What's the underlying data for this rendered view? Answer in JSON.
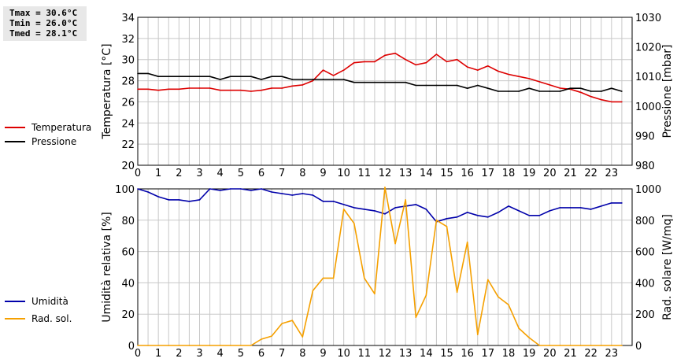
{
  "stats": {
    "tmax": "Tmax = 30.6°C",
    "tmin": "Tmin = 26.0°C",
    "tmed": "Tmed = 28.1°C"
  },
  "colors": {
    "temperature": "#dd0000",
    "pressure": "#000000",
    "humidity": "#0000aa",
    "solar": "#f5a000",
    "grid": "#c8c8c8"
  },
  "chart_data": [
    {
      "type": "line",
      "legend": "left",
      "grid": true,
      "xlim": [
        0,
        24
      ],
      "xticks": [
        "0",
        "1",
        "2",
        "3",
        "4",
        "5",
        "6",
        "7",
        "8",
        "9",
        "10",
        "11",
        "12",
        "13",
        "14",
        "15",
        "16",
        "17",
        "18",
        "19",
        "20",
        "21",
        "22",
        "23"
      ],
      "ylabel": "Temperatura [°C]",
      "ylim": [
        20,
        34
      ],
      "yticks": [
        "20",
        "22",
        "24",
        "26",
        "28",
        "30",
        "32",
        "34"
      ],
      "y2label": "Pressione [mbar]",
      "y2lim": [
        980,
        1030
      ],
      "y2ticks": [
        "980",
        "990",
        "1000",
        "1010",
        "1020",
        "1030"
      ],
      "series": [
        {
          "name": "Temperatura",
          "axis": "left",
          "x": [
            0,
            0.5,
            1,
            1.5,
            2,
            2.5,
            3,
            3.5,
            4,
            4.5,
            5,
            5.5,
            6,
            6.5,
            7,
            7.5,
            8,
            8.5,
            9,
            9.5,
            10,
            10.5,
            11,
            11.5,
            12,
            12.5,
            13,
            13.5,
            14,
            14.5,
            15,
            15.5,
            16,
            16.5,
            17,
            17.5,
            18,
            18.5,
            19,
            19.5,
            20,
            20.5,
            21,
            21.5,
            22,
            22.5,
            23,
            23.5
          ],
          "values": [
            27.2,
            27.2,
            27.1,
            27.2,
            27.2,
            27.3,
            27.3,
            27.3,
            27.1,
            27.1,
            27.1,
            27.0,
            27.1,
            27.3,
            27.3,
            27.5,
            27.6,
            28.0,
            29.0,
            28.5,
            29.0,
            29.7,
            29.8,
            29.8,
            30.4,
            30.6,
            30.0,
            29.5,
            29.7,
            30.5,
            29.8,
            30.0,
            29.3,
            29.0,
            29.4,
            28.9,
            28.6,
            28.4,
            28.2,
            27.9,
            27.6,
            27.3,
            27.2,
            26.9,
            26.5,
            26.2,
            26.0,
            26.0
          ]
        },
        {
          "name": "Pressione",
          "axis": "right",
          "x": [
            0,
            0.5,
            1,
            1.5,
            2,
            2.5,
            3,
            3.5,
            4,
            4.5,
            5,
            5.5,
            6,
            6.5,
            7,
            7.5,
            8,
            8.5,
            9,
            9.5,
            10,
            10.5,
            11,
            11.5,
            12,
            12.5,
            13,
            13.5,
            14,
            14.5,
            15,
            15.5,
            16,
            16.5,
            17,
            17.5,
            18,
            18.5,
            19,
            19.5,
            20,
            20.5,
            21,
            21.5,
            22,
            22.5,
            23,
            23.5
          ],
          "values": [
            1011,
            1011,
            1010,
            1010,
            1010,
            1010,
            1010,
            1010,
            1009,
            1010,
            1010,
            1010,
            1009,
            1010,
            1010,
            1009,
            1009,
            1009,
            1009,
            1009,
            1009,
            1008,
            1008,
            1008,
            1008,
            1008,
            1008,
            1007,
            1007,
            1007,
            1007,
            1007,
            1006,
            1007,
            1006,
            1005,
            1005,
            1005,
            1006,
            1005,
            1005,
            1005,
            1006,
            1006,
            1005,
            1005,
            1006,
            1005
          ]
        }
      ]
    },
    {
      "type": "line",
      "legend": "left",
      "grid": true,
      "xlim": [
        0,
        24
      ],
      "xticks": [
        "0",
        "1",
        "2",
        "3",
        "4",
        "5",
        "6",
        "7",
        "8",
        "9",
        "10",
        "11",
        "12",
        "13",
        "14",
        "15",
        "16",
        "17",
        "18",
        "19",
        "20",
        "21",
        "22",
        "23"
      ],
      "ylabel": "Umidità relativa [%]",
      "ylim": [
        0,
        100
      ],
      "yticks": [
        "0",
        "20",
        "40",
        "60",
        "80",
        "100"
      ],
      "y2label": "Rad. solare [W/mq]",
      "y2lim": [
        0,
        1000
      ],
      "y2ticks": [
        "0",
        "200",
        "400",
        "600",
        "800",
        "1000"
      ],
      "series": [
        {
          "name": "Umidità",
          "axis": "left",
          "x": [
            0,
            0.5,
            1,
            1.5,
            2,
            2.5,
            3,
            3.5,
            4,
            4.5,
            5,
            5.5,
            6,
            6.5,
            7,
            7.5,
            8,
            8.5,
            9,
            9.5,
            10,
            10.5,
            11,
            11.5,
            12,
            12.5,
            13,
            13.5,
            14,
            14.5,
            15,
            15.5,
            16,
            16.5,
            17,
            17.5,
            18,
            18.5,
            19,
            19.5,
            20,
            20.5,
            21,
            21.5,
            22,
            22.5,
            23,
            23.5
          ],
          "values": [
            100,
            98,
            95,
            93,
            93,
            92,
            93,
            100,
            99,
            100,
            100,
            99,
            100,
            98,
            97,
            96,
            97,
            96,
            92,
            92,
            90,
            88,
            87,
            86,
            84,
            88,
            89,
            90,
            87,
            79,
            81,
            82,
            85,
            83,
            82,
            85,
            89,
            86,
            83,
            83,
            86,
            88,
            88,
            88,
            87,
            89,
            91,
            91
          ]
        },
        {
          "name": "Rad. sol.",
          "axis": "right",
          "x": [
            0,
            0.5,
            1,
            1.5,
            2,
            2.5,
            3,
            3.5,
            4,
            4.5,
            5,
            5.5,
            6,
            6.5,
            7,
            7.5,
            8,
            8.5,
            9,
            9.5,
            10,
            10.5,
            11,
            11.5,
            12,
            12.5,
            13,
            13.5,
            14,
            14.5,
            15,
            15.5,
            16,
            16.5,
            17,
            17.5,
            18,
            18.5,
            19,
            19.5,
            20,
            20.5,
            21,
            21.5,
            22,
            22.5,
            23,
            23.5
          ],
          "values": [
            0,
            0,
            0,
            0,
            0,
            0,
            0,
            0,
            0,
            0,
            0,
            0,
            40,
            60,
            140,
            160,
            55,
            350,
            430,
            430,
            870,
            780,
            430,
            330,
            1010,
            650,
            930,
            180,
            320,
            800,
            760,
            340,
            660,
            70,
            420,
            310,
            260,
            110,
            50,
            0,
            0,
            0,
            0,
            0,
            0,
            0,
            0,
            0
          ]
        }
      ]
    }
  ]
}
